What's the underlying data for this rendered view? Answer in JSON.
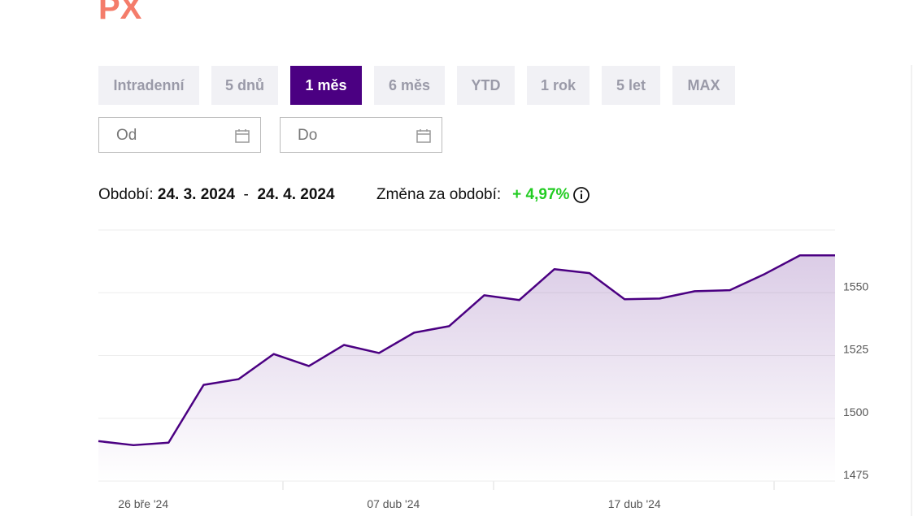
{
  "header": {
    "title": "PX"
  },
  "range_buttons": [
    {
      "label": "Intradenní",
      "active": false
    },
    {
      "label": "5 dnů",
      "active": false
    },
    {
      "label": "1 měs",
      "active": true
    },
    {
      "label": "6 měs",
      "active": false
    },
    {
      "label": "YTD",
      "active": false
    },
    {
      "label": "1 rok",
      "active": false
    },
    {
      "label": "5 let",
      "active": false
    },
    {
      "label": "MAX",
      "active": false
    }
  ],
  "date_inputs": [
    {
      "placeholder": "Od"
    },
    {
      "placeholder": "Do"
    }
  ],
  "period": {
    "label": "Období:",
    "from": "24. 3. 2024",
    "separator": "-",
    "to": "24. 4. 2024"
  },
  "change": {
    "label": "Změna za období:",
    "value": "+ 4,97%"
  },
  "chart_data": {
    "type": "area",
    "color": "#4b0082",
    "x": [
      0,
      1,
      2,
      3,
      4,
      5,
      6,
      7,
      8,
      9,
      10,
      11,
      12,
      13,
      14,
      15,
      16,
      17,
      18,
      19,
      20,
      21
    ],
    "values": [
      1490.9,
      1489.3,
      1490.3,
      1513.3,
      1515.6,
      1525.6,
      1520.8,
      1529.2,
      1526.0,
      1534.1,
      1536.7,
      1549.0,
      1547.1,
      1559.4,
      1557.8,
      1547.4,
      1547.7,
      1550.6,
      1551.0,
      1557.5,
      1564.9,
      1564.9
    ],
    "xlim": [
      0,
      21
    ],
    "xticks": [
      {
        "value": 1.28,
        "label": "26 bře '24"
      },
      {
        "value": 8.41,
        "label": "07 dub '24"
      },
      {
        "value": 15.28,
        "label": "17 dub '24"
      }
    ],
    "ylim": [
      1475,
      1575
    ],
    "yticks": [
      1475,
      1500,
      1525,
      1550
    ],
    "grid": true
  }
}
